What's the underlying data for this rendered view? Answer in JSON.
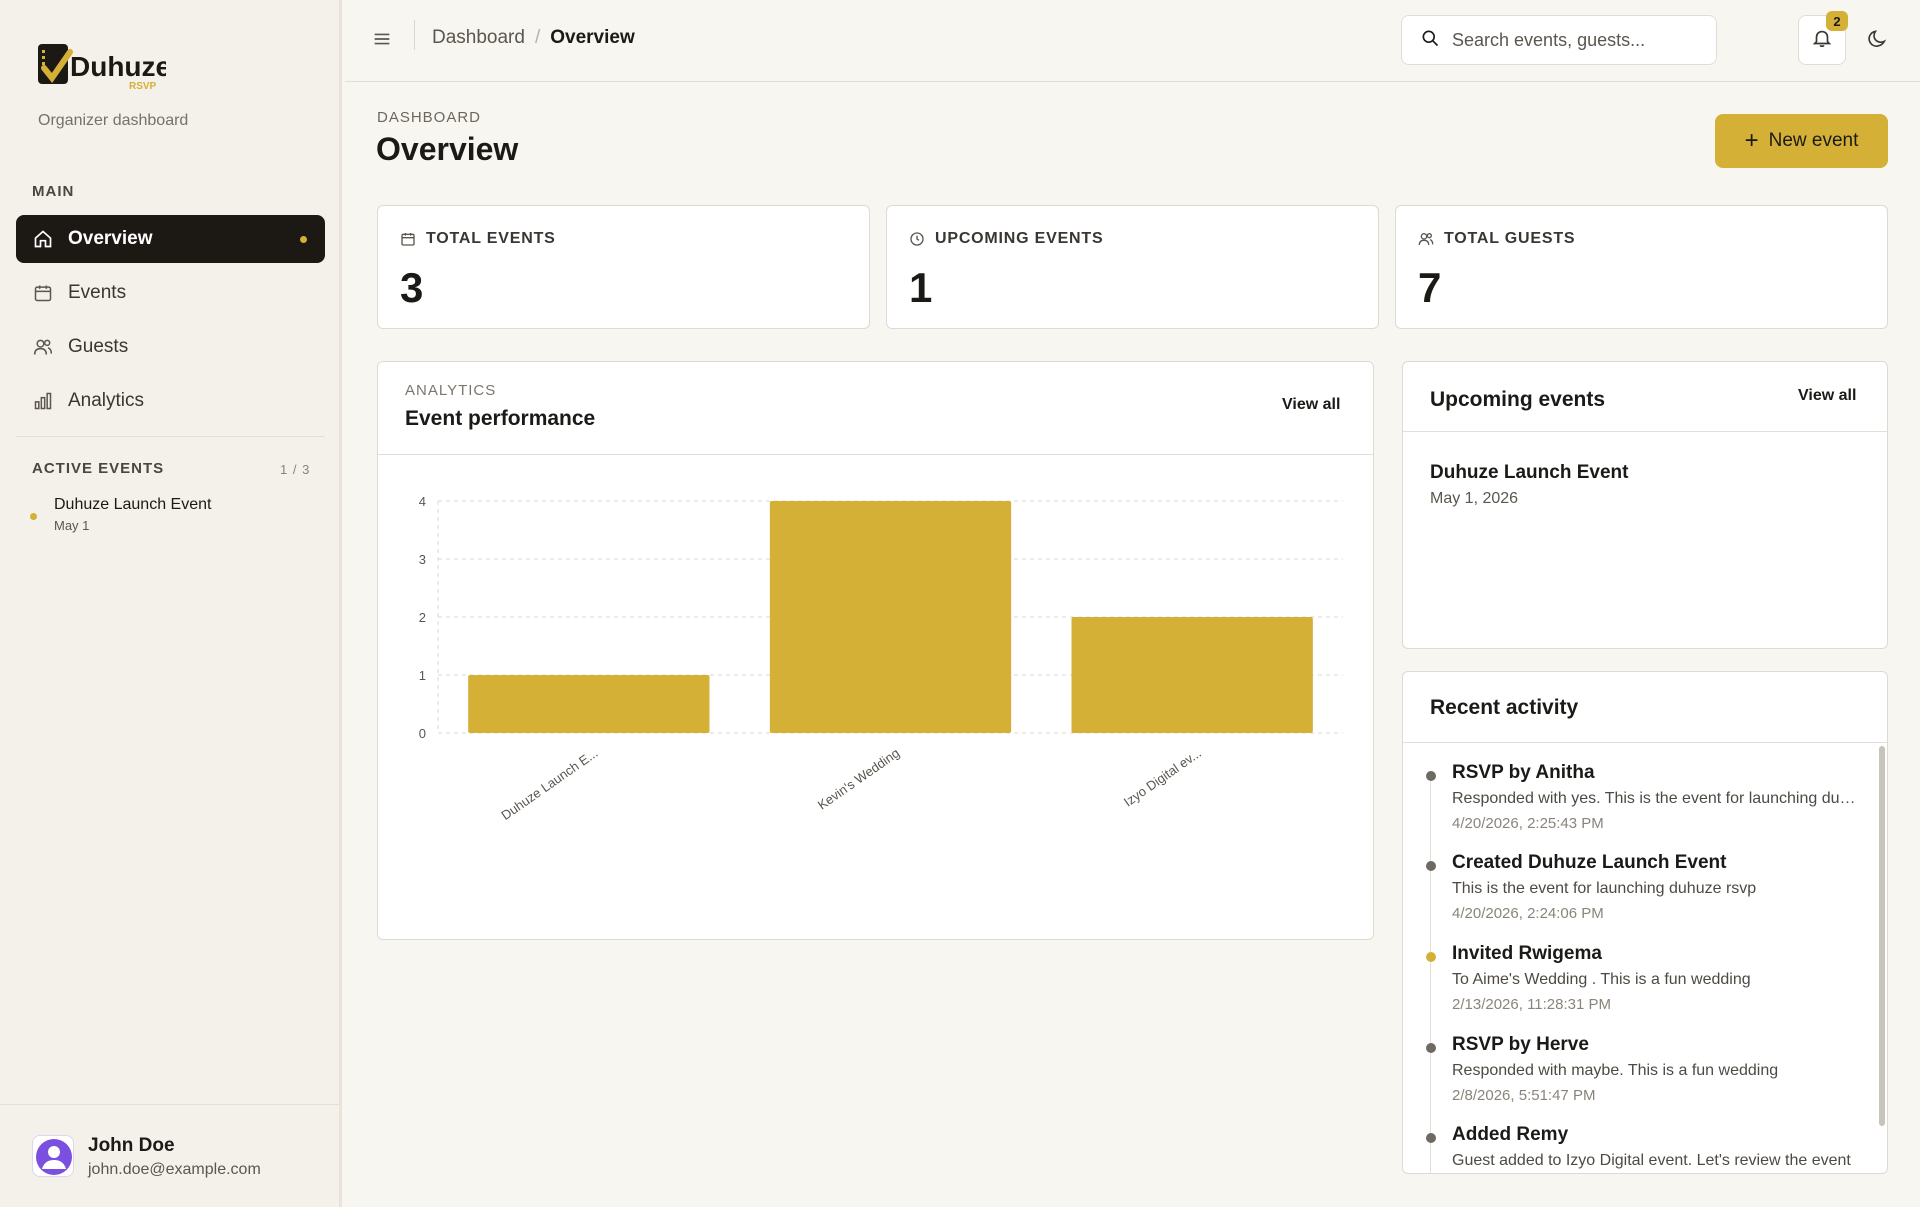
{
  "sidebar": {
    "logo_text": "Duhuze",
    "logo_sub": "RSVP",
    "subtitle": "Organizer dashboard",
    "main_label": "MAIN",
    "nav": [
      {
        "label": "Overview",
        "icon": "home-icon",
        "active": true
      },
      {
        "label": "Events",
        "icon": "calendar-icon"
      },
      {
        "label": "Guests",
        "icon": "users-icon"
      },
      {
        "label": "Analytics",
        "icon": "bar-chart-icon"
      }
    ],
    "active_events_label": "ACTIVE EVENTS",
    "active_events_count": "1 / 3",
    "active_events": [
      {
        "name": "Duhuze Launch Event",
        "date": "May 1"
      }
    ],
    "user": {
      "name": "John Doe",
      "email": "john.doe@example.com"
    }
  },
  "topbar": {
    "breadcrumb": [
      "Dashboard",
      "Overview"
    ],
    "breadcrumb_sep": "/",
    "search_placeholder": "Search events, guests...",
    "notification_count": "2"
  },
  "header": {
    "eyebrow": "DASHBOARD",
    "title": "Overview",
    "new_event_label": "New event"
  },
  "stats": [
    {
      "label": "TOTAL EVENTS",
      "value": "3",
      "icon": "calendar-icon"
    },
    {
      "label": "UPCOMING EVENTS",
      "value": "1",
      "icon": "clock-icon"
    },
    {
      "label": "TOTAL GUESTS",
      "value": "7",
      "icon": "users-icon"
    }
  ],
  "chart_panel": {
    "eyebrow": "ANALYTICS",
    "title": "Event performance",
    "view_all": "View all"
  },
  "chart_data": {
    "type": "bar",
    "categories": [
      "Duhuze Launch E...",
      "Kevin's Wedding",
      "Izyo Digital ev..."
    ],
    "values": [
      1,
      4,
      2
    ],
    "ylim": [
      0,
      4
    ],
    "yticks": [
      "0",
      "1",
      "2",
      "3",
      "4"
    ],
    "grid": true,
    "bar_color": "#d4b036"
  },
  "upcoming": {
    "title": "Upcoming events",
    "view_all": "View all",
    "items": [
      {
        "name": "Duhuze Launch Event",
        "date": "May 1, 2026"
      }
    ]
  },
  "activity": {
    "title": "Recent activity",
    "items": [
      {
        "title": "RSVP by Anitha",
        "desc": "Responded with yes. This is the event for launching duhuze rsvp",
        "time": "4/20/2026, 2:25:43 PM",
        "accent": false
      },
      {
        "title": "Created Duhuze Launch Event",
        "desc": "This is the event for launching duhuze rsvp",
        "time": "4/20/2026, 2:24:06 PM",
        "accent": false
      },
      {
        "title": "Invited Rwigema",
        "desc": "To Aime's Wedding . This is a fun wedding",
        "time": "2/13/2026, 11:28:31 PM",
        "accent": true
      },
      {
        "title": "RSVP by Herve",
        "desc": "Responded with maybe. This is a fun wedding",
        "time": "2/8/2026, 5:51:47 PM",
        "accent": false
      },
      {
        "title": "Added Remy",
        "desc": "Guest added to Izyo Digital event. Let's review the event",
        "time": "",
        "accent": false
      }
    ]
  },
  "colors": {
    "accent": "#d4b036",
    "dark": "#1c1915",
    "background": "#f8f6f1"
  }
}
